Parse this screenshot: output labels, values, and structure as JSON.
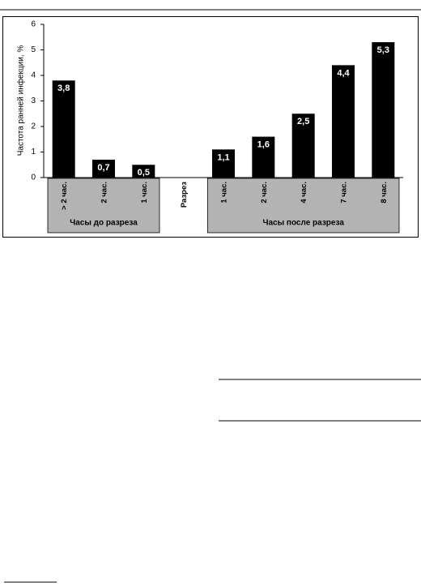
{
  "chart_data": {
    "type": "bar",
    "y_label": "Частота ранней инфекции, %",
    "categories": [
      "> 2 час.",
      "2 час.",
      "1 час.",
      "Разрез",
      "1 час.",
      "2 час.",
      "4 час.",
      "7 час.",
      "8 час."
    ],
    "values": [
      3.8,
      0.7,
      0.5,
      null,
      1.1,
      1.6,
      2.5,
      4.4,
      5.3
    ],
    "value_labels": [
      "3,8",
      "0,7",
      "0,5",
      null,
      "1,1",
      "1,6",
      "2,5",
      "4,4",
      "5,3"
    ],
    "color": "#000000",
    "ylim": [
      0,
      6
    ],
    "yticks": [
      0,
      1,
      2,
      3,
      4,
      5,
      6
    ],
    "grid": false,
    "groups": [
      {
        "name": "Часы до разреза",
        "from": 0,
        "to": 2
      },
      {
        "name": "Часы после разреза",
        "from": 4,
        "to": 8
      }
    ]
  }
}
